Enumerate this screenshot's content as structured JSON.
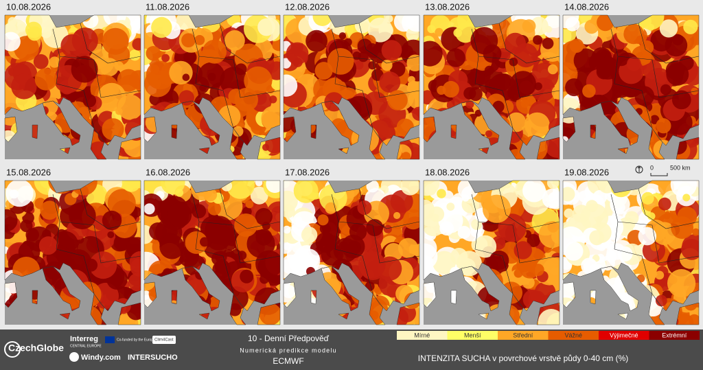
{
  "maps": [
    {
      "date": "10.08.2026"
    },
    {
      "date": "11.08.2026"
    },
    {
      "date": "12.08.2026"
    },
    {
      "date": "13.08.2026"
    },
    {
      "date": "14.08.2026"
    },
    {
      "date": "15.08.2026"
    },
    {
      "date": "16.08.2026"
    },
    {
      "date": "17.08.2026"
    },
    {
      "date": "18.08.2026"
    },
    {
      "date": "19.08.2026"
    }
  ],
  "scale": {
    "start": "0",
    "end": "500 km"
  },
  "footer": {
    "title": "10 - Denní Předpověď",
    "subtitle": "Numerická predikce modelu",
    "model": "ECMWF",
    "legend_title": "INTENZITA SUCHA v povrchové vrstvě půdy 0-40 cm (%)",
    "legend": [
      {
        "label": "Mírné",
        "color": "#fff6c2"
      },
      {
        "label": "Menší",
        "color": "#ffff66"
      },
      {
        "label": "Střední",
        "color": "#ffa726"
      },
      {
        "label": "Vážné",
        "color": "#e65c00"
      },
      {
        "label": "Výjimečné",
        "color": "#e00000"
      },
      {
        "label": "Extrémní",
        "color": "#8b0000"
      }
    ]
  },
  "logos": {
    "czechglobe": "CzechGlobe",
    "interreg": "Interreg",
    "interreg_sub": "CENTRAL EUROPE",
    "eu": "Co-funded by the European Union",
    "clim4cast": "Clim4Cast",
    "windy": "Windy.com",
    "intersucho": "INTERSUCHO"
  }
}
